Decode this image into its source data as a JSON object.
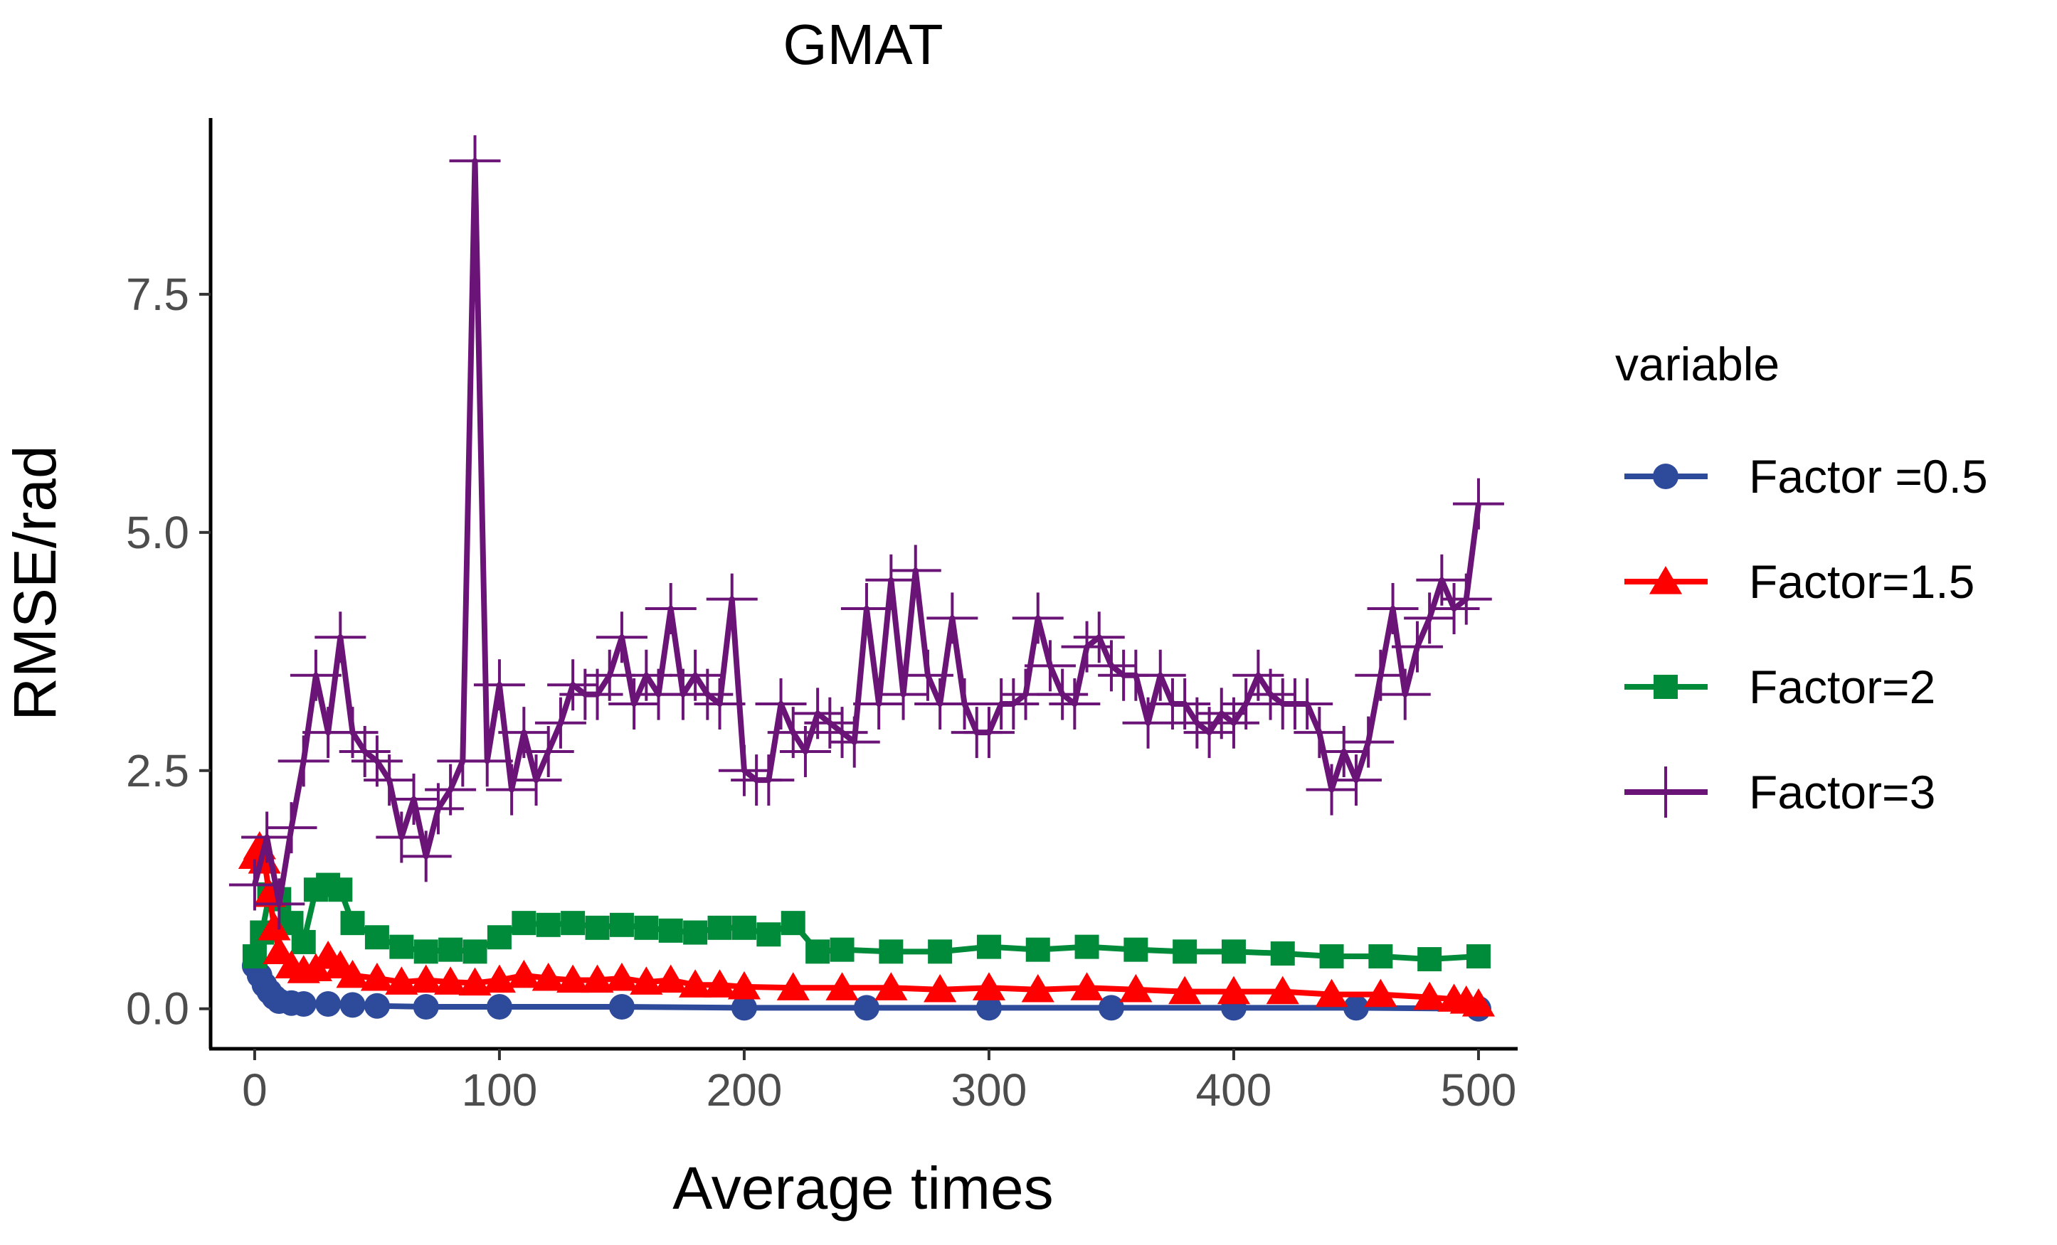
{
  "chart_data": {
    "type": "line",
    "title": "GMAT",
    "xlabel": "Average times",
    "ylabel": "RMSE/rad",
    "xlim": [
      -18,
      516
    ],
    "ylim": [
      -0.42,
      9.35
    ],
    "x_ticks": [
      0,
      100,
      200,
      300,
      400,
      500
    ],
    "x_tick_labels": [
      "0",
      "100",
      "200",
      "300",
      "400",
      "500"
    ],
    "y_ticks": [
      0.0,
      2.5,
      5.0,
      7.5
    ],
    "y_tick_labels": [
      "0.0",
      "2.5",
      "5.0",
      "7.5"
    ],
    "grid": false,
    "legend_title": "variable",
    "legend_position": "right",
    "series": [
      {
        "name": "Factor =0.5",
        "color": "#2E4A9A",
        "marker": "circle",
        "x": [
          0,
          2,
          4,
          6,
          8,
          10,
          15,
          20,
          30,
          40,
          50,
          70,
          100,
          150,
          200,
          250,
          300,
          350,
          400,
          450,
          500
        ],
        "y": [
          0.45,
          0.35,
          0.25,
          0.18,
          0.12,
          0.08,
          0.06,
          0.05,
          0.05,
          0.04,
          0.03,
          0.02,
          0.02,
          0.02,
          0.01,
          0.01,
          0.01,
          0.01,
          0.01,
          0.01,
          0.0
        ]
      },
      {
        "name": "Factor=1.5",
        "color": "#FF0000",
        "marker": "triangle",
        "x": [
          0,
          2,
          4,
          6,
          8,
          10,
          15,
          20,
          25,
          30,
          35,
          40,
          50,
          60,
          70,
          80,
          90,
          100,
          110,
          120,
          130,
          140,
          150,
          160,
          170,
          180,
          190,
          200,
          220,
          240,
          260,
          280,
          300,
          320,
          340,
          360,
          380,
          400,
          420,
          440,
          460,
          480,
          490,
          495,
          500
        ],
        "y": [
          1.6,
          1.7,
          1.55,
          1.2,
          0.85,
          0.6,
          0.45,
          0.4,
          0.42,
          0.55,
          0.45,
          0.35,
          0.32,
          0.28,
          0.3,
          0.28,
          0.27,
          0.3,
          0.35,
          0.32,
          0.3,
          0.3,
          0.32,
          0.28,
          0.3,
          0.25,
          0.25,
          0.23,
          0.22,
          0.22,
          0.22,
          0.2,
          0.22,
          0.2,
          0.22,
          0.2,
          0.18,
          0.18,
          0.18,
          0.15,
          0.15,
          0.12,
          0.1,
          0.08,
          0.05
        ]
      },
      {
        "name": "Factor=2",
        "color": "#008B3A",
        "marker": "square",
        "x": [
          0,
          3,
          6,
          10,
          15,
          20,
          25,
          30,
          35,
          40,
          50,
          60,
          70,
          80,
          90,
          100,
          110,
          120,
          130,
          140,
          150,
          160,
          170,
          180,
          190,
          200,
          210,
          220,
          230,
          240,
          260,
          280,
          300,
          320,
          340,
          360,
          380,
          400,
          420,
          440,
          460,
          480,
          500
        ],
        "y": [
          0.55,
          0.8,
          1.2,
          1.15,
          0.9,
          0.7,
          1.25,
          1.3,
          1.25,
          0.9,
          0.75,
          0.65,
          0.6,
          0.62,
          0.6,
          0.75,
          0.9,
          0.88,
          0.9,
          0.85,
          0.88,
          0.85,
          0.82,
          0.8,
          0.85,
          0.85,
          0.78,
          0.9,
          0.6,
          0.62,
          0.6,
          0.6,
          0.65,
          0.62,
          0.65,
          0.62,
          0.6,
          0.6,
          0.58,
          0.55,
          0.55,
          0.52,
          0.55
        ]
      },
      {
        "name": "Factor=3",
        "color": "#6B1477",
        "marker": "plus",
        "x": [
          0,
          5,
          10,
          15,
          20,
          25,
          30,
          35,
          40,
          45,
          50,
          55,
          60,
          65,
          70,
          75,
          80,
          85,
          90,
          95,
          100,
          105,
          110,
          115,
          120,
          125,
          130,
          135,
          140,
          145,
          150,
          155,
          160,
          165,
          170,
          175,
          180,
          185,
          190,
          195,
          200,
          205,
          210,
          215,
          220,
          225,
          230,
          235,
          240,
          245,
          250,
          255,
          260,
          265,
          270,
          275,
          280,
          285,
          290,
          295,
          300,
          305,
          310,
          315,
          320,
          325,
          330,
          335,
          340,
          345,
          350,
          355,
          360,
          365,
          370,
          375,
          380,
          385,
          390,
          395,
          400,
          405,
          410,
          415,
          420,
          425,
          430,
          435,
          440,
          445,
          450,
          455,
          460,
          465,
          470,
          475,
          480,
          485,
          490,
          495,
          500
        ],
        "y": [
          1.3,
          1.8,
          1.1,
          1.9,
          2.6,
          3.5,
          2.9,
          3.9,
          2.9,
          2.7,
          2.6,
          2.4,
          1.8,
          2.2,
          1.6,
          2.1,
          2.3,
          2.6,
          8.9,
          2.6,
          3.4,
          2.3,
          2.9,
          2.4,
          2.7,
          3.0,
          3.4,
          3.3,
          3.3,
          3.5,
          3.9,
          3.2,
          3.5,
          3.3,
          4.2,
          3.3,
          3.5,
          3.3,
          3.2,
          4.3,
          2.5,
          2.4,
          2.4,
          3.2,
          2.9,
          2.7,
          3.1,
          3.0,
          2.9,
          2.8,
          4.2,
          3.2,
          4.5,
          3.3,
          4.6,
          3.5,
          3.2,
          4.1,
          3.2,
          2.9,
          2.9,
          3.2,
          3.2,
          3.3,
          4.1,
          3.6,
          3.3,
          3.2,
          3.8,
          3.9,
          3.6,
          3.5,
          3.5,
          3.0,
          3.5,
          3.2,
          3.2,
          3.0,
          2.9,
          3.1,
          3.0,
          3.2,
          3.5,
          3.3,
          3.2,
          3.2,
          3.2,
          2.9,
          2.3,
          2.7,
          2.4,
          2.8,
          3.5,
          4.2,
          3.3,
          3.8,
          4.1,
          4.5,
          4.2,
          4.3,
          5.3
        ]
      }
    ]
  }
}
